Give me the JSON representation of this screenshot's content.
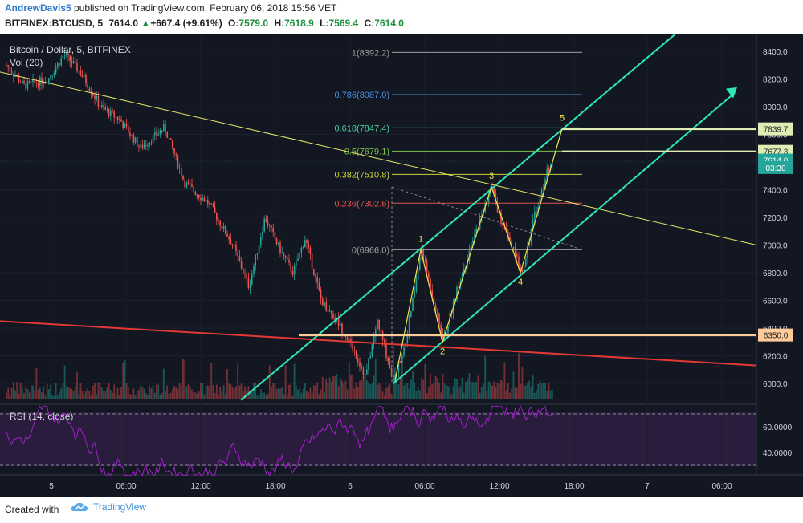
{
  "header": {
    "author": "AndrewDavis5",
    "published_text": " published on TradingView.com, February 06, 2018 15:56 VET",
    "symbol_line": "BITFINEX:BTCUSD, 5",
    "last": "7614.0",
    "change_arrow": "▲",
    "change": "+667.4 (+9.61%)",
    "o_label": "O:",
    "o_val": "7579.0",
    "h_label": "H:",
    "h_val": "7618.9",
    "l_label": "L:",
    "l_val": "7569.4",
    "c_label": "C:",
    "c_val": "7614.0"
  },
  "legend": {
    "title": "Bitcoin / Dollar, 5, BITFINEX",
    "vol": "Vol (20)",
    "rsi": "RSI (14, close)"
  },
  "footer": {
    "created_with": "Created with",
    "brand": "TradingView"
  },
  "colors": {
    "background": "#131722",
    "up": "#26a69a",
    "down": "#ef5350",
    "channel": "#2ee6b8",
    "trendline_yellow": "#e8e86a",
    "trendline_red": "#e53935",
    "wave": "#f0e54e",
    "rsi_line": "#a020c8",
    "rsi_band": "#2a1c3c"
  },
  "chart_data": {
    "type": "candlestick",
    "title": "Bitcoin / Dollar, 5, BITFINEX",
    "price_axis": {
      "ylim": [
        5850,
        8500
      ],
      "ticks": [
        "8400.0",
        "8200.0",
        "8000.0",
        "7800.0",
        "7600.0",
        "7400.0",
        "7200.0",
        "7000.0",
        "6800.0",
        "6600.0",
        "6400.0",
        "6200.0",
        "6000.0"
      ],
      "tick_values": [
        8400,
        8200,
        8000,
        7800,
        7600,
        7400,
        7200,
        7000,
        6800,
        6600,
        6400,
        6200,
        6000
      ],
      "markers": [
        {
          "label": "7839.7",
          "value": 7839.7,
          "color": "#ddedb4"
        },
        {
          "label": "7677.3",
          "value": 7677.3,
          "color": "#ddedb4"
        },
        {
          "label": "7614.0",
          "value": 7614.0,
          "color": "#26a69a"
        },
        {
          "label": "03:30",
          "value": 7560,
          "color": "#26a69a"
        },
        {
          "label": "6350.0",
          "value": 6350.0,
          "color": "#ffcc99"
        }
      ]
    },
    "time_axis": {
      "labels": [
        "5",
        "06:00",
        "12:00",
        "18:00",
        "6",
        "06:00",
        "12:00",
        "18:00",
        "7",
        "06:00"
      ]
    },
    "fibonacci": [
      {
        "label": "1(8392.2)",
        "value": 8392.2,
        "color": "#9e9e9e"
      },
      {
        "label": "0.786(8087.0)",
        "value": 8087.0,
        "color": "#4a90d9"
      },
      {
        "label": "0.618(7847.4)",
        "value": 7847.4,
        "color": "#4cd0a0"
      },
      {
        "label": "0.5(7679.1)",
        "value": 7679.1,
        "color": "#7cc24a"
      },
      {
        "label": "0.382(7510.8)",
        "value": 7510.8,
        "color": "#c8d438"
      },
      {
        "label": "0.236(7302.6)",
        "value": 7302.6,
        "color": "#e05050"
      },
      {
        "label": "0(6966.0)",
        "value": 6966.0,
        "color": "#9e9e9e"
      }
    ],
    "elliott_wave": [
      {
        "label": "1",
        "value": 6966
      },
      {
        "label": "2",
        "value": 6300
      },
      {
        "label": "3",
        "value": 7420
      },
      {
        "label": "4",
        "value": 6800
      },
      {
        "label": "5",
        "value": 7840
      }
    ],
    "rsi": {
      "label": "RSI (14, close)",
      "ticks": [
        "60.0000",
        "40.0000"
      ],
      "tick_values": [
        60,
        40
      ],
      "bands": [
        70,
        30
      ]
    },
    "volume_label": "Vol (20)"
  }
}
